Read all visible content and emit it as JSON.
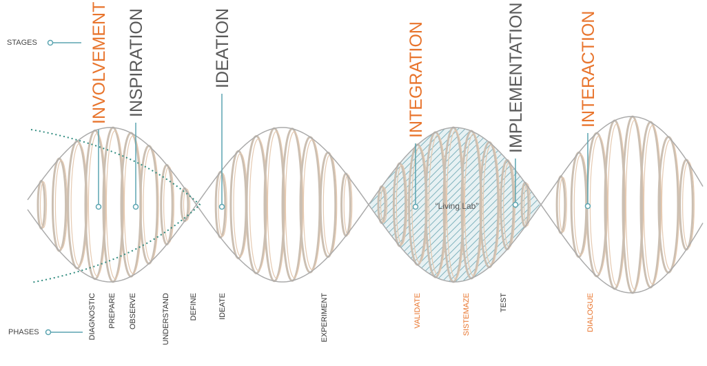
{
  "labels": {
    "stages": "STAGES",
    "phases": "PHASES",
    "center": "“Living Lab”"
  },
  "stages": [
    {
      "label": "INVOLVEMENT",
      "color": "#e8742c"
    },
    {
      "label": "INSPIRATION",
      "color": "#5a5a5a"
    },
    {
      "label": "IDEATION",
      "color": "#5a5a5a"
    },
    {
      "label": "INTEGRATION",
      "color": "#e8742c"
    },
    {
      "label": "IMPLEMENTATION",
      "color": "#5a5a5a"
    },
    {
      "label": "INTERACTION",
      "color": "#e8742c"
    }
  ],
  "phases": [
    {
      "label": "DIAGNOSTIC",
      "color": "#333333"
    },
    {
      "label": "PREPARE",
      "color": "#333333"
    },
    {
      "label": "OBSERVE",
      "color": "#333333"
    },
    {
      "label": "UNDERSTAND",
      "color": "#333333"
    },
    {
      "label": "DEFINE",
      "color": "#333333"
    },
    {
      "label": "IDEATE",
      "color": "#333333"
    },
    {
      "label": "EXPERIMENT",
      "color": "#333333"
    },
    {
      "label": "VALIDATE",
      "color": "#e8742c"
    },
    {
      "label": "SISTEMAZE",
      "color": "#e8742c"
    },
    {
      "label": "TEST",
      "color": "#333333"
    },
    {
      "label": "DIALOGUE",
      "color": "#e8742c"
    }
  ]
}
